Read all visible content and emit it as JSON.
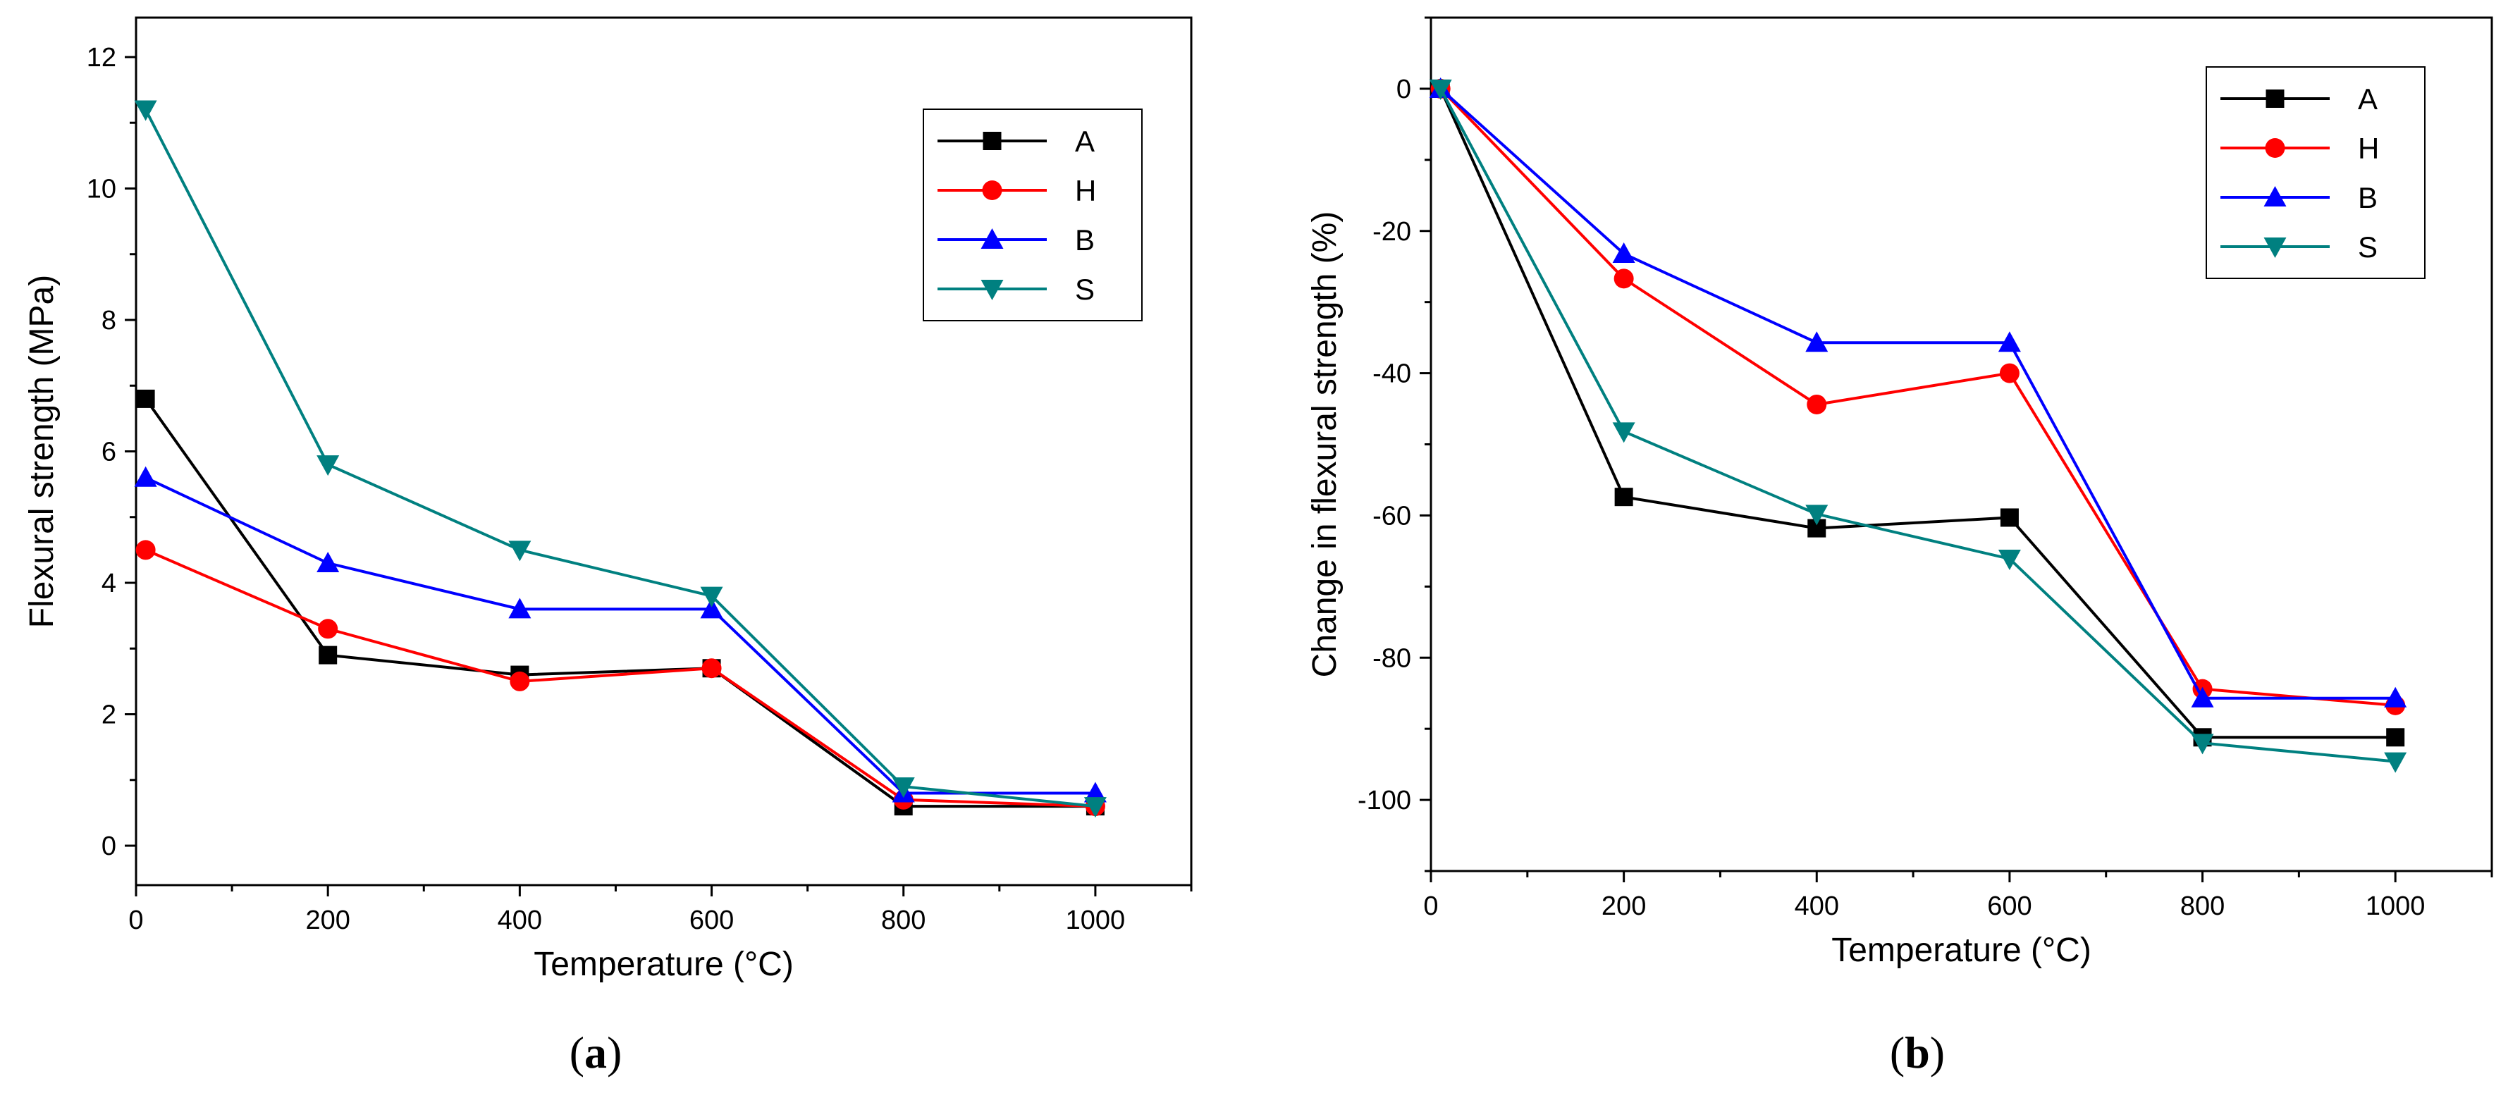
{
  "chart_data": [
    {
      "type": "line",
      "panel_caption": "a",
      "xlabel": "Temperature (°C)",
      "ylabel": "Flexural strength (MPa)",
      "xlim": [
        0,
        1100
      ],
      "ylim": [
        -0.6,
        12.6
      ],
      "xticks": [
        0,
        200,
        400,
        600,
        800,
        1000
      ],
      "xtick_labels": [
        "0",
        "200",
        "400",
        "600",
        "800",
        "1000"
      ],
      "yticks": [
        0,
        2,
        4,
        6,
        8,
        10,
        12
      ],
      "ytick_labels": [
        "0",
        "2",
        "4",
        "6",
        "8",
        "10",
        "12"
      ],
      "grid": false,
      "legend_position": "top-right",
      "x": [
        10,
        200,
        400,
        600,
        800,
        1000
      ],
      "series": [
        {
          "name": "A",
          "color": "#000000",
          "marker": "square",
          "values": [
            6.8,
            2.9,
            2.6,
            2.7,
            0.6,
            0.6
          ]
        },
        {
          "name": "H",
          "color": "#ff0000",
          "marker": "circle",
          "values": [
            4.5,
            3.3,
            2.5,
            2.7,
            0.7,
            0.6
          ]
        },
        {
          "name": "B",
          "color": "#0000ff",
          "marker": "triangle-up",
          "values": [
            5.6,
            4.3,
            3.6,
            3.6,
            0.8,
            0.8
          ]
        },
        {
          "name": "S",
          "color": "#008080",
          "marker": "triangle-down",
          "values": [
            11.2,
            5.8,
            4.5,
            3.8,
            0.9,
            0.6
          ]
        }
      ]
    },
    {
      "type": "line",
      "panel_caption": "b",
      "xlabel": "Temperature (°C)",
      "ylabel": "Change in flexural strength (%)",
      "xlim": [
        0,
        1100
      ],
      "ylim": [
        -110,
        10
      ],
      "xticks": [
        0,
        200,
        400,
        600,
        800,
        1000
      ],
      "xtick_labels": [
        "0",
        "200",
        "400",
        "600",
        "800",
        "1000"
      ],
      "yticks": [
        0,
        -20,
        -40,
        -60,
        -80,
        -100
      ],
      "ytick_labels": [
        "0",
        "-20",
        "-40",
        "-60",
        "-80",
        "-100"
      ],
      "grid": false,
      "legend_position": "top-right",
      "x": [
        10,
        200,
        400,
        600,
        800,
        1000
      ],
      "series": [
        {
          "name": "A",
          "color": "#000000",
          "marker": "square",
          "values": [
            0,
            -57.4,
            -61.8,
            -60.3,
            -91.2,
            -91.2
          ]
        },
        {
          "name": "H",
          "color": "#ff0000",
          "marker": "circle",
          "values": [
            0,
            -26.7,
            -44.4,
            -40,
            -84.4,
            -86.7
          ]
        },
        {
          "name": "B",
          "color": "#0000ff",
          "marker": "triangle-up",
          "values": [
            0,
            -23.2,
            -35.7,
            -35.7,
            -85.7,
            -85.7
          ]
        },
        {
          "name": "S",
          "color": "#008080",
          "marker": "triangle-down",
          "values": [
            0,
            -48.2,
            -59.8,
            -66.1,
            -92,
            -94.6
          ]
        }
      ]
    }
  ]
}
